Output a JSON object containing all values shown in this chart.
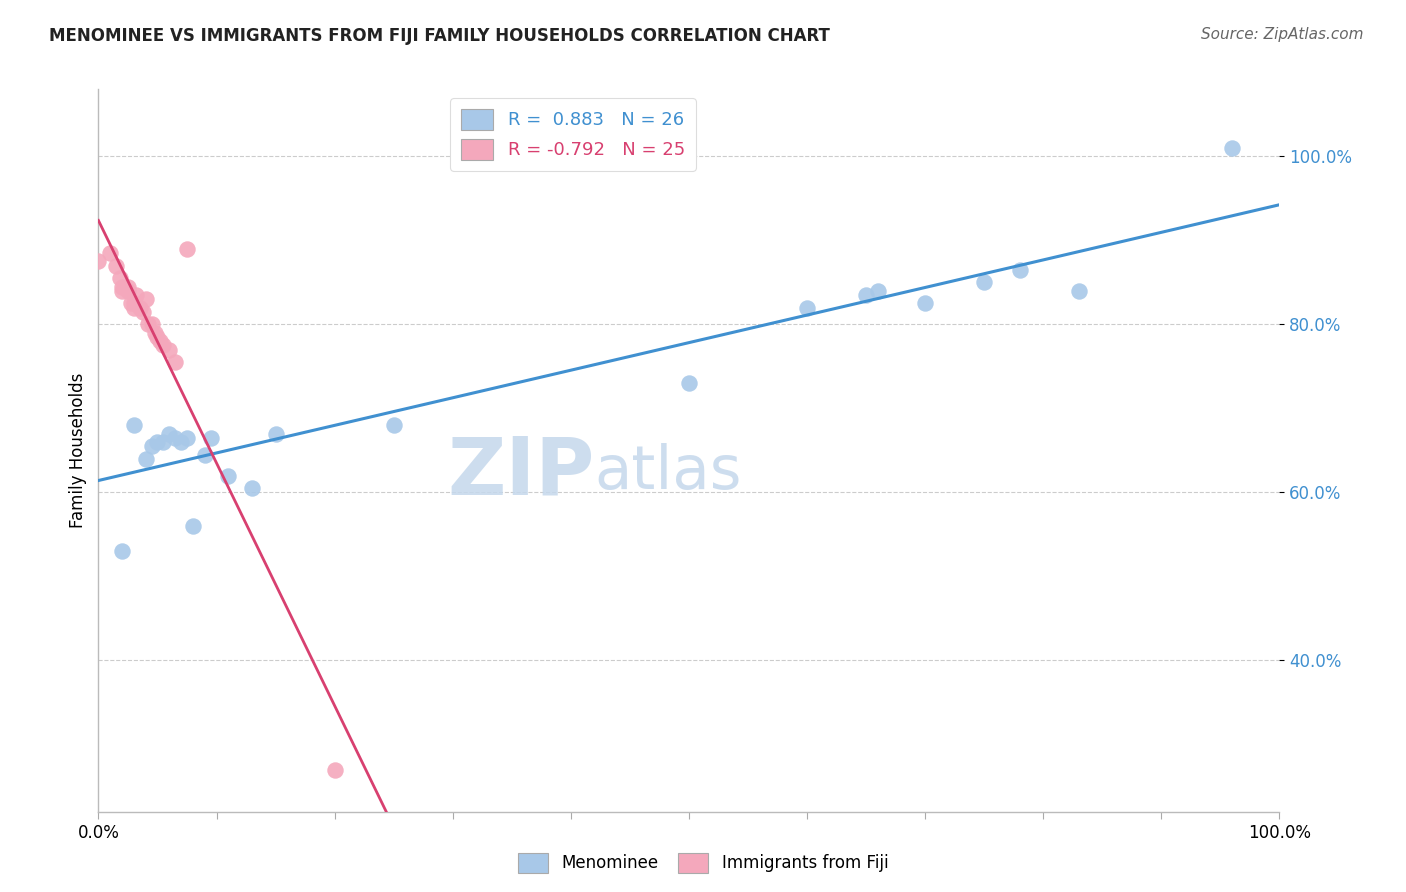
{
  "title": "MENOMINEE VS IMMIGRANTS FROM FIJI FAMILY HOUSEHOLDS CORRELATION CHART",
  "source": "Source: ZipAtlas.com",
  "ylabel": "Family Households",
  "legend_r_blue": "0.883",
  "legend_n_blue": "26",
  "legend_r_pink": "-0.792",
  "legend_n_pink": "25",
  "blue_color": "#A8C8E8",
  "pink_color": "#F4A8BC",
  "blue_line_color": "#4090D0",
  "pink_line_color": "#D84070",
  "watermark_zip": "ZIP",
  "watermark_atlas": "atlas",
  "blue_scatter_x": [
    0.02,
    0.03,
    0.04,
    0.045,
    0.05,
    0.055,
    0.06,
    0.065,
    0.07,
    0.075,
    0.08,
    0.09,
    0.095,
    0.11,
    0.13,
    0.15,
    0.25,
    0.5,
    0.6,
    0.65,
    0.66,
    0.7,
    0.75,
    0.78,
    0.83,
    0.96
  ],
  "blue_scatter_y": [
    0.53,
    0.68,
    0.64,
    0.655,
    0.66,
    0.66,
    0.67,
    0.665,
    0.66,
    0.665,
    0.56,
    0.645,
    0.665,
    0.62,
    0.605,
    0.67,
    0.68,
    0.73,
    0.82,
    0.835,
    0.84,
    0.825,
    0.85,
    0.865,
    0.84,
    1.01
  ],
  "pink_scatter_x": [
    0.0,
    0.01,
    0.015,
    0.018,
    0.02,
    0.02,
    0.025,
    0.025,
    0.028,
    0.03,
    0.03,
    0.032,
    0.035,
    0.038,
    0.04,
    0.042,
    0.045,
    0.048,
    0.05,
    0.052,
    0.055,
    0.06,
    0.065,
    0.075,
    0.2
  ],
  "pink_scatter_y": [
    0.875,
    0.885,
    0.87,
    0.855,
    0.845,
    0.84,
    0.845,
    0.84,
    0.825,
    0.825,
    0.82,
    0.835,
    0.82,
    0.815,
    0.83,
    0.8,
    0.8,
    0.79,
    0.785,
    0.78,
    0.775,
    0.77,
    0.755,
    0.89,
    0.27
  ],
  "xlim": [
    0.0,
    1.0
  ],
  "ylim": [
    0.22,
    1.08
  ],
  "yticks": [
    0.4,
    0.6,
    0.8,
    1.0
  ],
  "ytick_labels": [
    "40.0%",
    "60.0%",
    "80.0%",
    "100.0%"
  ],
  "xticks_minor": [
    0.0,
    0.1,
    0.2,
    0.3,
    0.4,
    0.5,
    0.6,
    0.7,
    0.8,
    0.9,
    1.0
  ]
}
